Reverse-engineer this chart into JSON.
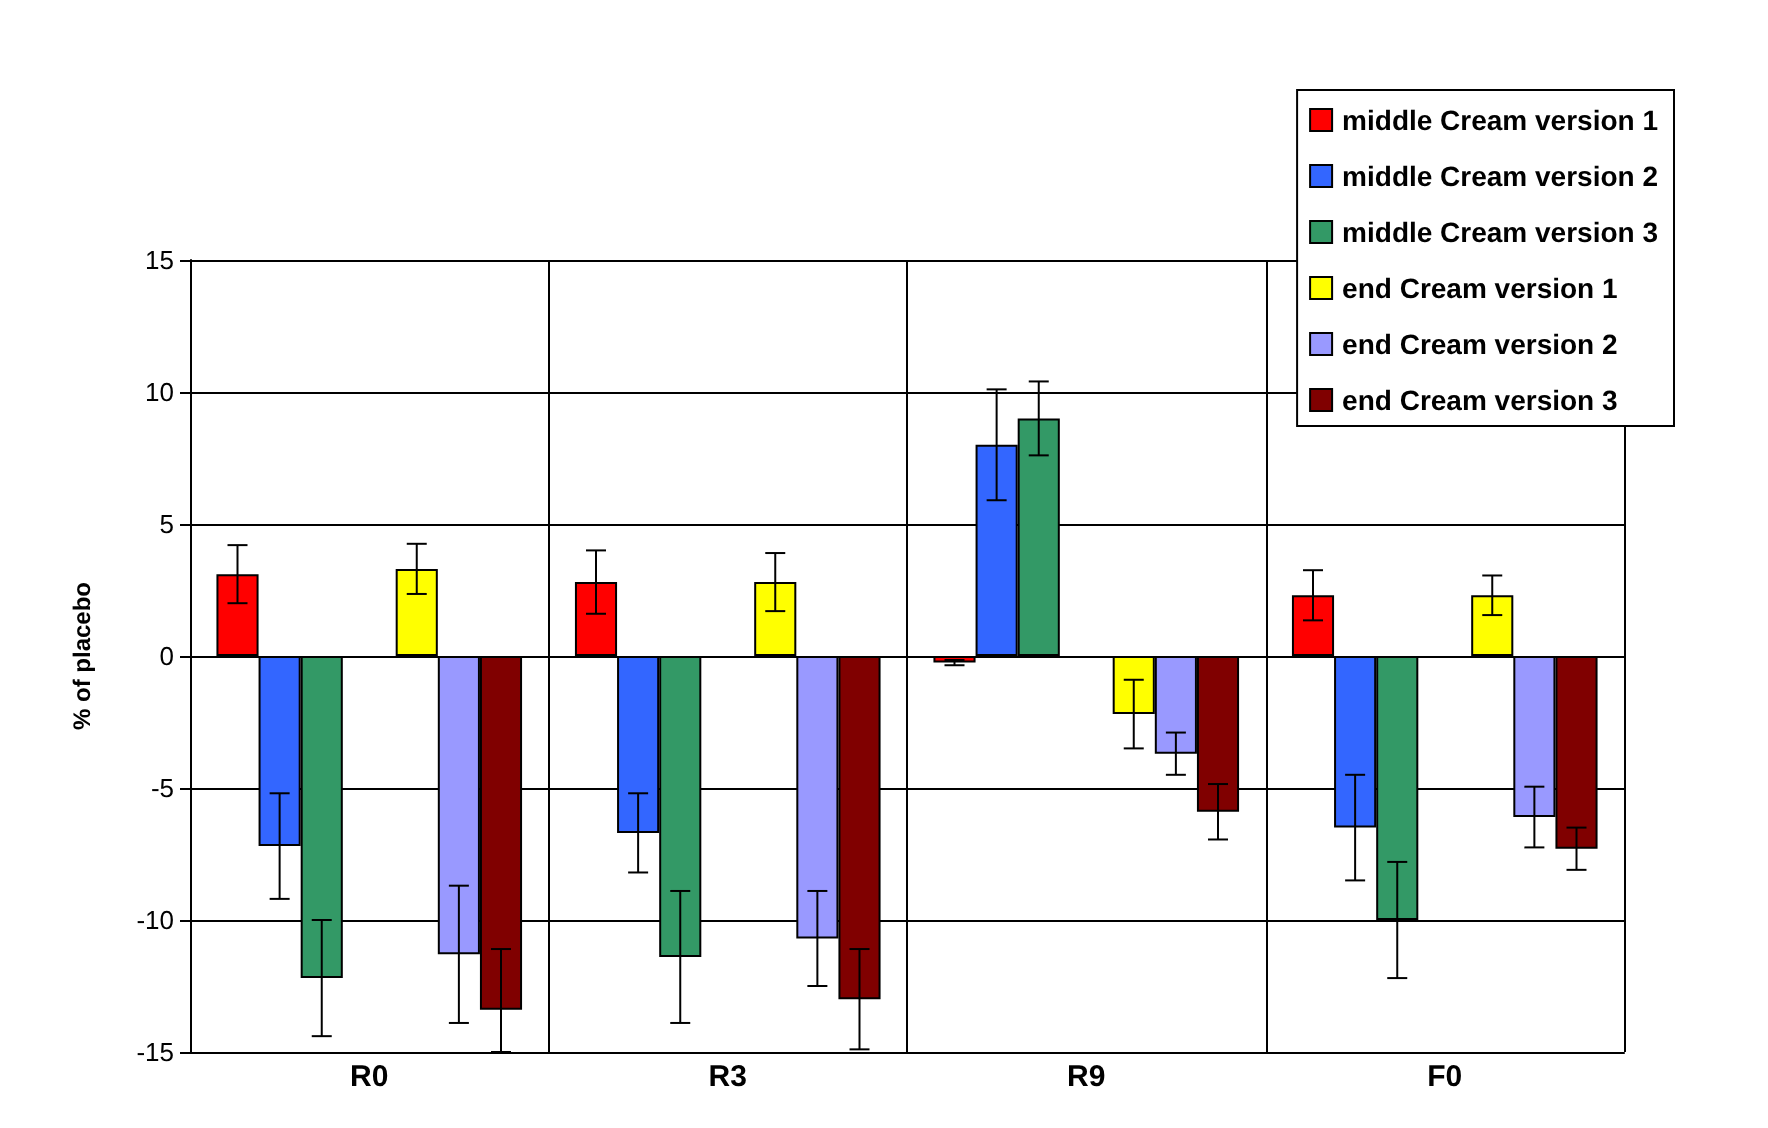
{
  "chart_data": {
    "type": "bar",
    "ylabel": "% of placebo",
    "categories": [
      "R0",
      "R3",
      "R9",
      "F0"
    ],
    "ylim": [
      -15,
      15
    ],
    "yticks": [
      -15,
      -10,
      -5,
      0,
      5,
      10,
      15
    ],
    "grid": true,
    "legend": "top right",
    "series": [
      {
        "name": "middle Cream version 1",
        "color": "#ff0000",
        "values": [
          3.1,
          2.8,
          -0.25,
          2.3
        ],
        "errors": [
          1.1,
          1.2,
          0.1,
          0.95
        ]
      },
      {
        "name": "middle Cream version 2",
        "color": "#3366ff",
        "values": [
          -7.2,
          -6.7,
          8.0,
          -6.5
        ],
        "errors": [
          2.0,
          1.5,
          2.1,
          2.0
        ]
      },
      {
        "name": "middle Cream version 3",
        "color": "#339966",
        "values": [
          -12.2,
          -11.4,
          9.0,
          -10.0
        ],
        "errors": [
          2.2,
          2.5,
          1.4,
          2.2
        ]
      },
      {
        "name": "end Cream version 1",
        "color": "#ffff00",
        "values": [
          3.3,
          2.8,
          -2.2,
          2.3
        ],
        "errors": [
          0.95,
          1.1,
          1.3,
          0.75
        ]
      },
      {
        "name": "end Cream version 2",
        "color": "#9999ff",
        "values": [
          -11.3,
          -10.7,
          -3.7,
          -6.1
        ],
        "errors": [
          2.6,
          1.8,
          0.8,
          1.15
        ]
      },
      {
        "name": "end Cream version 3",
        "color": "#800000",
        "values": [
          -13.4,
          -13.0,
          -5.9,
          -7.3
        ],
        "errors": [
          [
            -15,
            -11.1
          ],
          1.9,
          1.05,
          0.8
        ]
      }
    ]
  }
}
